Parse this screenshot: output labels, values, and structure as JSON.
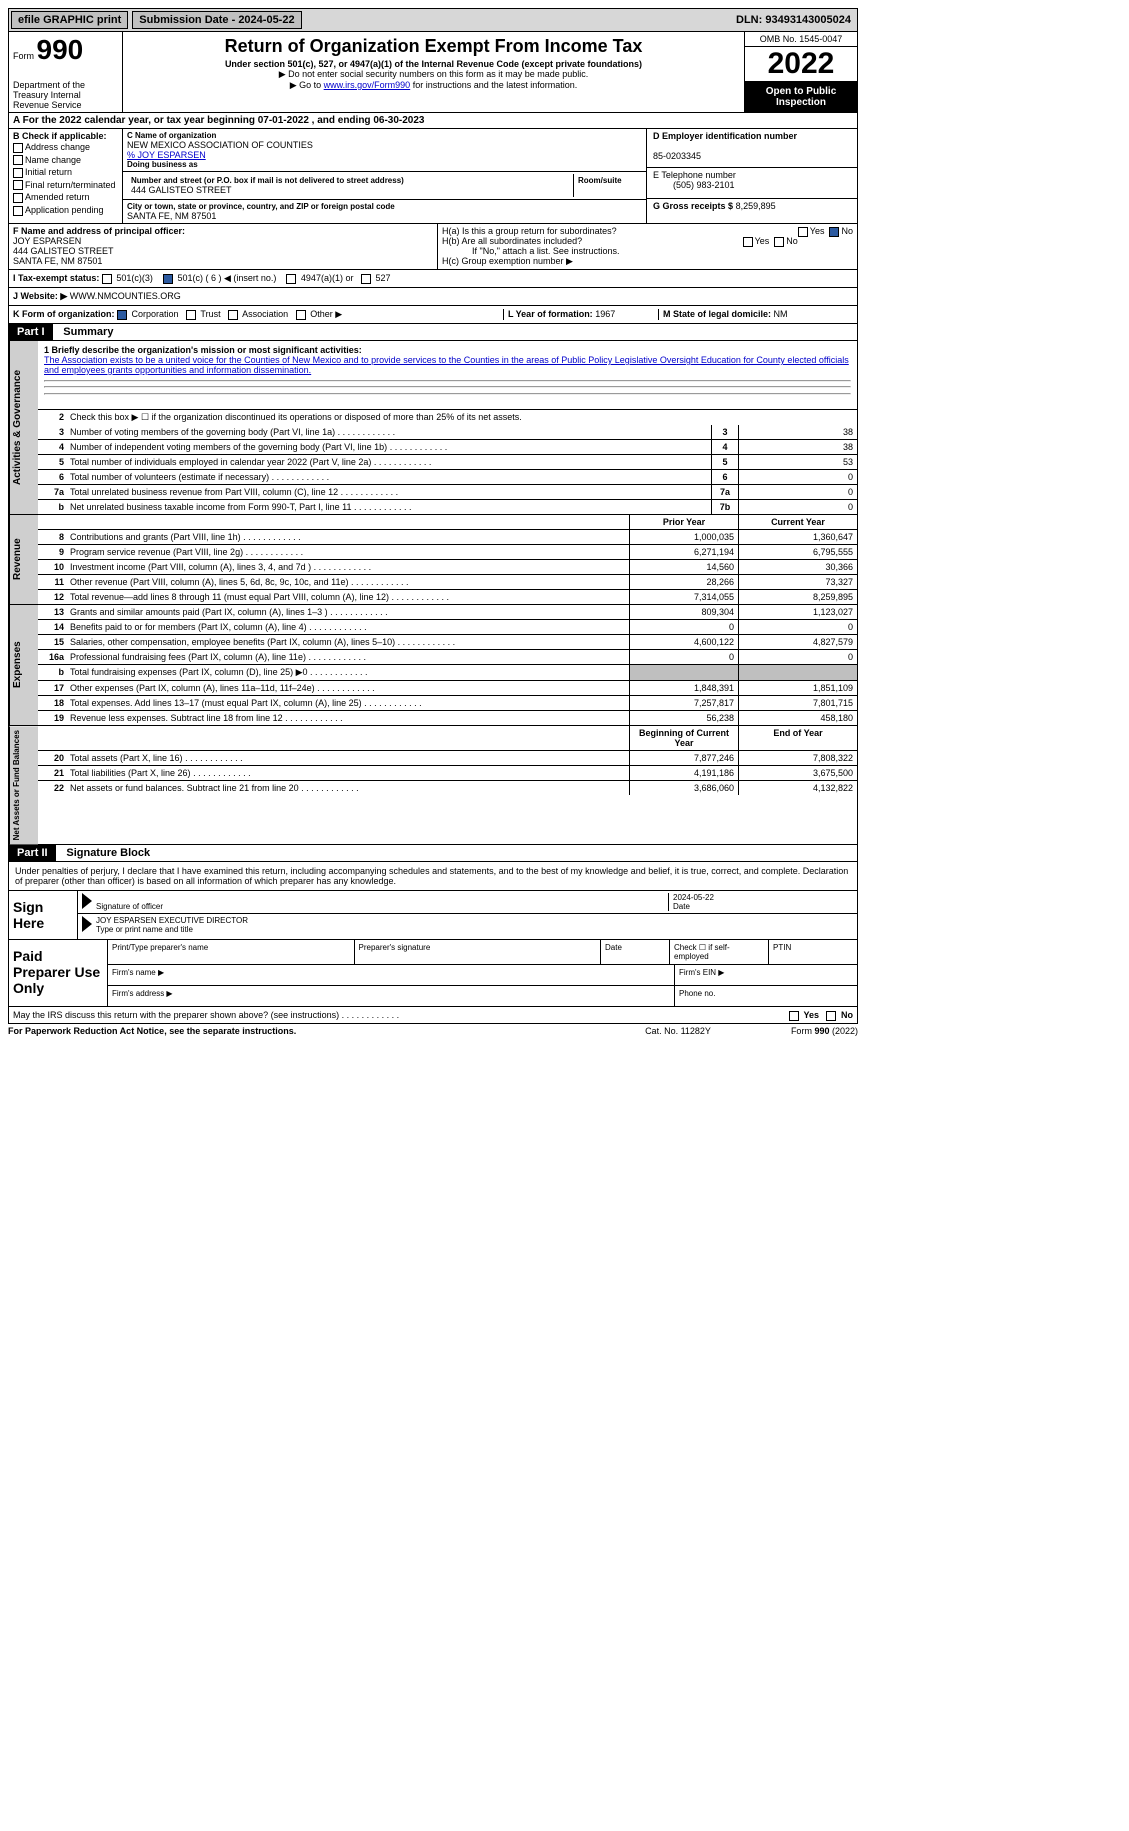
{
  "topbar": {
    "efile": "efile GRAPHIC print",
    "submission": "Submission Date - 2024-05-22",
    "dln": "DLN: 93493143005024"
  },
  "header": {
    "form_label": "Form",
    "form_num": "990",
    "dept": "Department of the Treasury Internal Revenue Service",
    "title": "Return of Organization Exempt From Income Tax",
    "subtitle": "Under section 501(c), 527, or 4947(a)(1) of the Internal Revenue Code (except private foundations)",
    "note1": "▶ Do not enter social security numbers on this form as it may be made public.",
    "note2_pre": "▶ Go to ",
    "note2_link": "www.irs.gov/Form990",
    "note2_post": " for instructions and the latest information.",
    "omb": "OMB No. 1545-0047",
    "year": "2022",
    "open": "Open to Public Inspection"
  },
  "period": {
    "text": "A For the 2022 calendar year, or tax year beginning 07-01-2022    , and ending 06-30-2023"
  },
  "sectionB": {
    "label": "B Check if applicable:",
    "opts": [
      "Address change",
      "Name change",
      "Initial return",
      "Final return/terminated",
      "Amended return",
      "Application pending"
    ],
    "c_name_lbl": "C Name of organization",
    "c_name": "NEW MEXICO ASSOCIATION OF COUNTIES",
    "c_care": "% JOY ESPARSEN",
    "dba_lbl": "Doing business as",
    "addr_lbl": "Number and street (or P.O. box if mail is not delivered to street address)",
    "room_lbl": "Room/suite",
    "addr": "444 GALISTEO STREET",
    "city_lbl": "City or town, state or province, country, and ZIP or foreign postal code",
    "city": "SANTA FE, NM  87501",
    "d_lbl": "D Employer identification number",
    "d_val": "85-0203345",
    "e_lbl": "E Telephone number",
    "e_val": "(505) 983-2101",
    "g_lbl": "G Gross receipts $",
    "g_val": "8,259,895"
  },
  "f": {
    "lbl": "F Name and address of principal officer:",
    "name": "JOY ESPARSEN",
    "addr1": "444 GALISTEO STREET",
    "addr2": "SANTA FE, NM  87501"
  },
  "h": {
    "ha": "H(a)  Is this a group return for subordinates?",
    "hb": "H(b)  Are all subordinates included?",
    "hb_note": "If \"No,\" attach a list. See instructions.",
    "hc": "H(c)  Group exemption number ▶",
    "yes": "Yes",
    "no": "No"
  },
  "i": {
    "lbl": "I   Tax-exempt status:",
    "o1": "501(c)(3)",
    "o2": "501(c) ( 6 ) ◀ (insert no.)",
    "o3": "4947(a)(1) or",
    "o4": "527"
  },
  "j": {
    "lbl": "J   Website: ▶",
    "val": "WWW.NMCOUNTIES.ORG"
  },
  "k": {
    "lbl": "K Form of organization:",
    "corp": "Corporation",
    "trust": "Trust",
    "assoc": "Association",
    "other": "Other ▶",
    "l_lbl": "L Year of formation:",
    "l_val": "1967",
    "m_lbl": "M State of legal domicile:",
    "m_val": "NM"
  },
  "part1": {
    "hdr": "Part I",
    "title": "Summary",
    "brief_lbl": "1   Briefly describe the organization's mission or most significant activities:",
    "mission": "The Association exists to be a united voice for the Counties of New Mexico and to provide services to the Counties in the areas of Public Policy Legislative Oversight Education for County elected officials and employees grants opportunities and information dissemination.",
    "line2": "Check this box ▶ ☐ if the organization discontinued its operations or disposed of more than 25% of its net assets.",
    "tabs": {
      "ag": "Activities & Governance",
      "rev": "Revenue",
      "exp": "Expenses",
      "na": "Net Assets or Fund Balances"
    },
    "rows_ag": [
      {
        "n": "3",
        "d": "Number of voting members of the governing body (Part VI, line 1a)",
        "b": "3",
        "v": "38"
      },
      {
        "n": "4",
        "d": "Number of independent voting members of the governing body (Part VI, line 1b)",
        "b": "4",
        "v": "38"
      },
      {
        "n": "5",
        "d": "Total number of individuals employed in calendar year 2022 (Part V, line 2a)",
        "b": "5",
        "v": "53"
      },
      {
        "n": "6",
        "d": "Total number of volunteers (estimate if necessary)",
        "b": "6",
        "v": "0"
      },
      {
        "n": "7a",
        "d": "Total unrelated business revenue from Part VIII, column (C), line 12",
        "b": "7a",
        "v": "0"
      },
      {
        "n": "b",
        "d": "Net unrelated business taxable income from Form 990-T, Part I, line 11",
        "b": "7b",
        "v": "0"
      }
    ],
    "colhdr": {
      "py": "Prior Year",
      "cy": "Current Year",
      "bcy": "Beginning of Current Year",
      "eoy": "End of Year"
    },
    "rows_rev": [
      {
        "n": "8",
        "d": "Contributions and grants (Part VIII, line 1h)",
        "py": "1,000,035",
        "cy": "1,360,647"
      },
      {
        "n": "9",
        "d": "Program service revenue (Part VIII, line 2g)",
        "py": "6,271,194",
        "cy": "6,795,555"
      },
      {
        "n": "10",
        "d": "Investment income (Part VIII, column (A), lines 3, 4, and 7d )",
        "py": "14,560",
        "cy": "30,366"
      },
      {
        "n": "11",
        "d": "Other revenue (Part VIII, column (A), lines 5, 6d, 8c, 9c, 10c, and 11e)",
        "py": "28,266",
        "cy": "73,327"
      },
      {
        "n": "12",
        "d": "Total revenue—add lines 8 through 11 (must equal Part VIII, column (A), line 12)",
        "py": "7,314,055",
        "cy": "8,259,895"
      }
    ],
    "rows_exp": [
      {
        "n": "13",
        "d": "Grants and similar amounts paid (Part IX, column (A), lines 1–3 )",
        "py": "809,304",
        "cy": "1,123,027"
      },
      {
        "n": "14",
        "d": "Benefits paid to or for members (Part IX, column (A), line 4)",
        "py": "0",
        "cy": "0"
      },
      {
        "n": "15",
        "d": "Salaries, other compensation, employee benefits (Part IX, column (A), lines 5–10)",
        "py": "4,600,122",
        "cy": "4,827,579"
      },
      {
        "n": "16a",
        "d": "Professional fundraising fees (Part IX, column (A), line 11e)",
        "py": "0",
        "cy": "0"
      },
      {
        "n": "b",
        "d": "Total fundraising expenses (Part IX, column (D), line 25) ▶0",
        "py": "",
        "cy": "",
        "shaded": true
      },
      {
        "n": "17",
        "d": "Other expenses (Part IX, column (A), lines 11a–11d, 11f–24e)",
        "py": "1,848,391",
        "cy": "1,851,109"
      },
      {
        "n": "18",
        "d": "Total expenses. Add lines 13–17 (must equal Part IX, column (A), line 25)",
        "py": "7,257,817",
        "cy": "7,801,715"
      },
      {
        "n": "19",
        "d": "Revenue less expenses. Subtract line 18 from line 12",
        "py": "56,238",
        "cy": "458,180"
      }
    ],
    "rows_na": [
      {
        "n": "20",
        "d": "Total assets (Part X, line 16)",
        "py": "7,877,246",
        "cy": "7,808,322"
      },
      {
        "n": "21",
        "d": "Total liabilities (Part X, line 26)",
        "py": "4,191,186",
        "cy": "3,675,500"
      },
      {
        "n": "22",
        "d": "Net assets or fund balances. Subtract line 21 from line 20",
        "py": "3,686,060",
        "cy": "4,132,822"
      }
    ]
  },
  "part2": {
    "hdr": "Part II",
    "title": "Signature Block",
    "penalty": "Under penalties of perjury, I declare that I have examined this return, including accompanying schedules and statements, and to the best of my knowledge and belief, it is true, correct, and complete. Declaration of preparer (other than officer) is based on all information of which preparer has any knowledge.",
    "sign_here": "Sign Here",
    "sig_officer": "Signature of officer",
    "sig_date": "2024-05-22",
    "date_lbl": "Date",
    "name_title": "JOY ESPARSEN  EXECUTIVE DIRECTOR",
    "name_lbl": "Type or print name and title",
    "paid": "Paid Preparer Use Only",
    "pp_name": "Print/Type preparer's name",
    "pp_sig": "Preparer's signature",
    "pp_date": "Date",
    "pp_check": "Check ☐ if self-employed",
    "pp_ptin": "PTIN",
    "firm_name": "Firm's name    ▶",
    "firm_ein": "Firm's EIN ▶",
    "firm_addr": "Firm's address ▶",
    "phone": "Phone no."
  },
  "discuss": {
    "text": "May the IRS discuss this return with the preparer shown above? (see instructions)",
    "yes": "Yes",
    "no": "No"
  },
  "footer": {
    "l": "For Paperwork Reduction Act Notice, see the separate instructions.",
    "m": "Cat. No. 11282Y",
    "r": "Form 990 (2022)"
  }
}
